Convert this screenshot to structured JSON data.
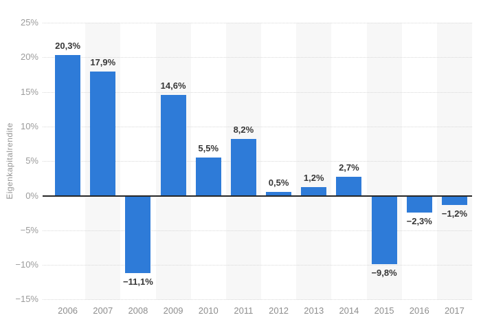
{
  "chart_data": {
    "type": "bar",
    "title": "",
    "ylabel": "Eigenkapitalrendite",
    "xlabel": "",
    "categories": [
      "2006",
      "2007",
      "2008",
      "2009",
      "2010",
      "2011",
      "2012",
      "2013",
      "2014",
      "2015",
      "2016",
      "2017"
    ],
    "values": [
      20.3,
      17.9,
      -11.1,
      14.6,
      5.5,
      8.2,
      0.5,
      1.2,
      2.7,
      -9.8,
      -2.3,
      -1.2
    ],
    "value_labels": [
      "20,3%",
      "17,9%",
      "−11,1%",
      "14,6%",
      "5,5%",
      "8,2%",
      "0,5%",
      "1,2%",
      "2,7%",
      "−9,8%",
      "−2,3%",
      "−1,2%"
    ],
    "y_tick_values": [
      25,
      20,
      15,
      10,
      5,
      0,
      -5,
      -10,
      -15
    ],
    "y_tick_labels": [
      "25%",
      "20%",
      "15%",
      "10%",
      "5%",
      "0%",
      "−5%",
      "−10%",
      "−15%"
    ],
    "ylim": [
      -15,
      25
    ],
    "grid": "horizontal-dotted",
    "legend": "none",
    "colors": {
      "bar": "#2e7bd8",
      "grid": "#d8d8d8",
      "zero_line": "#262626",
      "column_stripe": "#f7f7f7",
      "tick_text": "#9b9b9b",
      "year_text": "#8d8d8d",
      "value_text": "#373737",
      "background": "#ffffff"
    }
  }
}
